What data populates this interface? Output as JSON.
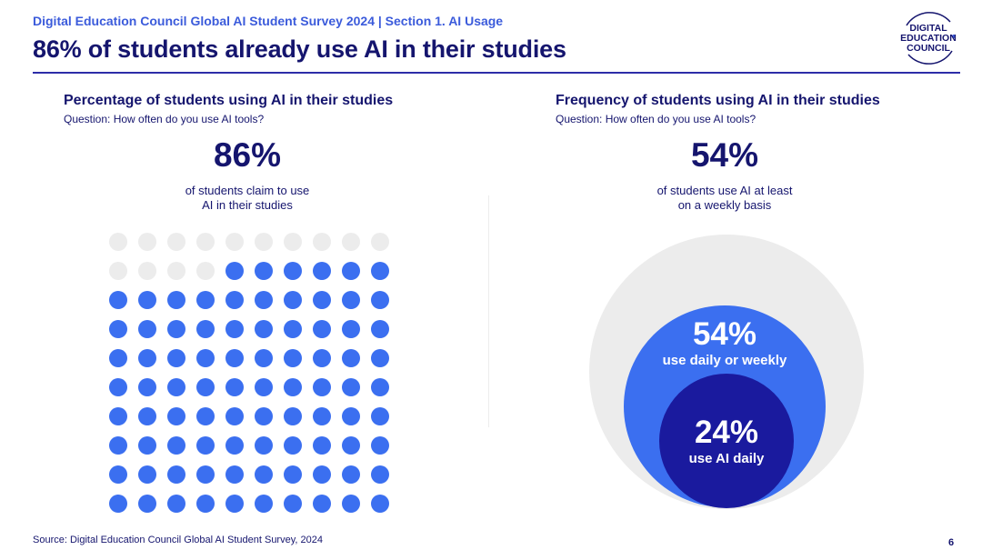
{
  "header": {
    "supertitle": "Digital Education Council Global AI Student Survey 2024 | Section 1. AI Usage",
    "title": "86% of students already use AI in their studies",
    "logo_text": [
      "DIGITAL",
      "EDUCATION",
      "COUNCIL"
    ]
  },
  "left_panel": {
    "title": "Percentage of students using AI in their studies",
    "question": "Question: How often do you use AI tools?",
    "big_value": "86%",
    "caption_line1": "of students claim to use",
    "caption_line2": "AI in their studies"
  },
  "right_panel": {
    "title": "Frequency of students using AI in their studies",
    "question": "Question: How often do you use AI tools?",
    "big_value": "54%",
    "caption_line1": "of students use AI at least",
    "caption_line2": "on a weekly basis"
  },
  "footer": {
    "source": "Source: Digital Education Council Global AI Student Survey, 2024",
    "page_number": "6"
  },
  "colors": {
    "navy": "#15156e",
    "accent_blue": "#3b6ff0",
    "dark_blue": "#1a1a9e",
    "light_gray": "#ececec"
  },
  "chart_data": [
    {
      "type": "waffle",
      "total": 100,
      "filled": 86,
      "unfilled": 14,
      "rows": 10,
      "columns": 10,
      "fill_order": "bottom-up"
    },
    {
      "type": "nested_circles",
      "circles": [
        {
          "value": 100,
          "label": "",
          "sublabel": "",
          "color": "#ececec"
        },
        {
          "value": 54,
          "label": "54%",
          "sublabel": "use daily or weekly",
          "color": "#3b6ff0"
        },
        {
          "value": 24,
          "label": "24%",
          "sublabel": "use AI daily",
          "color": "#1a1a9e"
        }
      ]
    }
  ]
}
